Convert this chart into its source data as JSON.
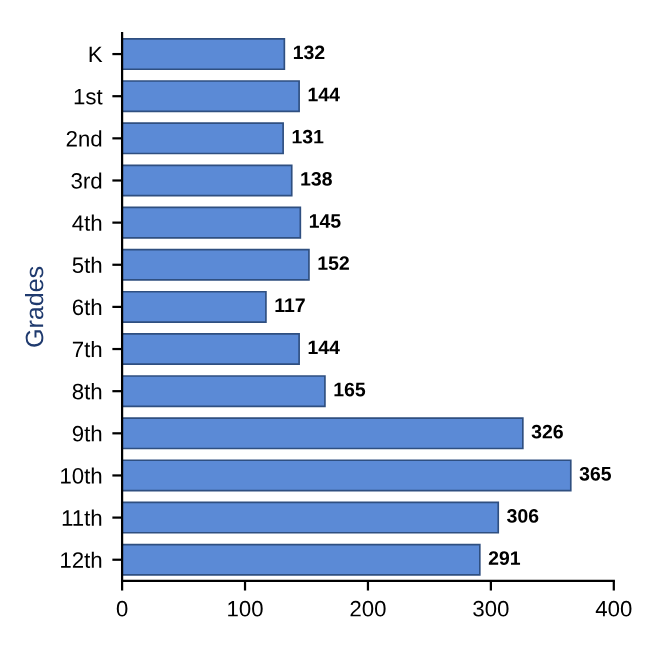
{
  "chart_data": {
    "type": "bar",
    "orientation": "horizontal",
    "ylabel": "Grades",
    "categories": [
      "K",
      "1st",
      "2nd",
      "3rd",
      "4th",
      "5th",
      "6th",
      "7th",
      "8th",
      "9th",
      "10th",
      "11th",
      "12th"
    ],
    "values": [
      132,
      144,
      131,
      138,
      145,
      152,
      117,
      144,
      165,
      326,
      365,
      306,
      291
    ],
    "color": "#5b8ad6",
    "xlim": [
      0,
      400
    ],
    "xticks": [
      0,
      100,
      200,
      300,
      400
    ],
    "grid": false,
    "data_labels": true
  }
}
